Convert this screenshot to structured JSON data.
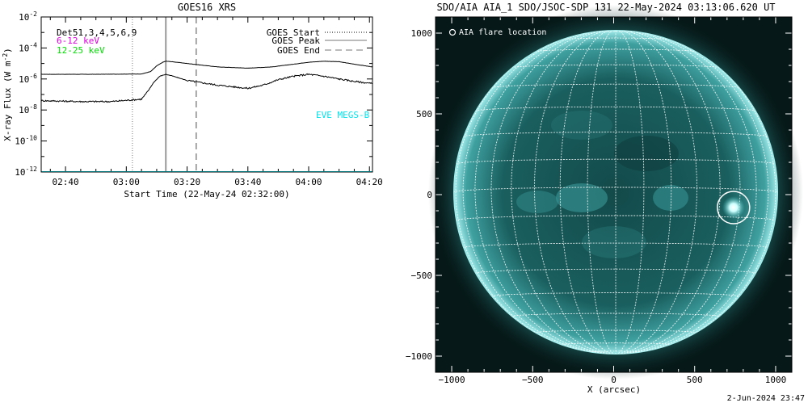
{
  "chart_data": [
    {
      "type": "line",
      "title": "GOES16 XRS",
      "xlabel": "Start Time (22-May-24 02:32:00)",
      "ylabel": "X-ray Flux (W m^-2)",
      "y_scale": "log",
      "ylim": [
        1e-12,
        0.01
      ],
      "x_range": [
        "02:32",
        "04:21"
      ],
      "x_ticks": [
        "02:40",
        "03:00",
        "03:20",
        "03:40",
        "04:00",
        "04:20"
      ],
      "y_ticks": [
        "10^-2",
        "10^-4",
        "10^-6",
        "10^-8",
        "10^-10",
        "10^-12"
      ],
      "legend_left": [
        {
          "label": "Det51,3,4,5,6,9",
          "color": "#000000"
        },
        {
          "label": "6-12 keV",
          "color": "#e000e0"
        },
        {
          "label": "12-25 keV",
          "color": "#00e000"
        }
      ],
      "legend_right": [
        {
          "label": "GOES Start",
          "style": "dotted",
          "time": "03:02"
        },
        {
          "label": "GOES Peak",
          "style": "solid",
          "time": "03:13"
        },
        {
          "label": "GOES End",
          "style": "dashed",
          "time": "03:23"
        }
      ],
      "annotation": {
        "text": "EVE MEGS-B",
        "color": "#00e5ee"
      },
      "series": [
        {
          "color": "#000000",
          "x": [
            "02:32",
            "02:50",
            "03:05",
            "03:08",
            "03:10",
            "03:12",
            "03:13",
            "03:15",
            "03:20",
            "03:30",
            "03:40",
            "03:48",
            "03:55",
            "04:00",
            "04:05",
            "04:10",
            "04:15",
            "04:21"
          ],
          "values": [
            2e-06,
            2e-06,
            2.1e-06,
            3e-06,
            7e-06,
            1.2e-05,
            1.4e-05,
            1.3e-05,
            1e-05,
            6e-06,
            5e-06,
            6e-06,
            9e-06,
            1.2e-05,
            1.4e-05,
            1.3e-05,
            9e-06,
            6e-06
          ]
        },
        {
          "color": "#000000",
          "x": [
            "02:32",
            "02:45",
            "02:55",
            "03:05",
            "03:07",
            "03:09",
            "03:11",
            "03:13",
            "03:15",
            "03:20",
            "03:30",
            "03:40",
            "03:45",
            "03:50",
            "03:55",
            "04:00",
            "04:05",
            "04:10",
            "04:15",
            "04:21"
          ],
          "values": [
            4e-08,
            3.5e-08,
            3.5e-08,
            5e-08,
            1.5e-07,
            6e-07,
            1.5e-06,
            2e-06,
            1.6e-06,
            8e-07,
            4e-07,
            2.5e-07,
            4e-07,
            9e-07,
            1.5e-06,
            2e-06,
            1.5e-06,
            1e-06,
            7e-07,
            5e-07
          ]
        },
        {
          "color": "#00e5ee",
          "x": [
            "02:32",
            "04:21"
          ],
          "values": [
            1e-12,
            1e-12
          ]
        }
      ]
    },
    {
      "type": "image",
      "title": "SDO/AIA AIA_1 SDO/JSOC-SDP 131 22-May-2024 03:13:06.620 UT",
      "xlabel": "X (arcsec)",
      "x_ticks": [
        -1000,
        -500,
        0,
        500,
        1000
      ],
      "y_ticks": [
        1000,
        500,
        0,
        -500,
        -1000
      ],
      "xlim": [
        -1100,
        1100
      ],
      "ylim": [
        -1100,
        1100
      ],
      "legend": "AIA flare location",
      "flare_location": {
        "x": 740,
        "y": -80
      },
      "colors": {
        "disk": "#1a5c5c",
        "limb": "#9fe8e8",
        "background": "#051414",
        "grid": "#ffffff"
      }
    }
  ],
  "footer": {
    "timestamp": "2-Jun-2024 23:47"
  }
}
